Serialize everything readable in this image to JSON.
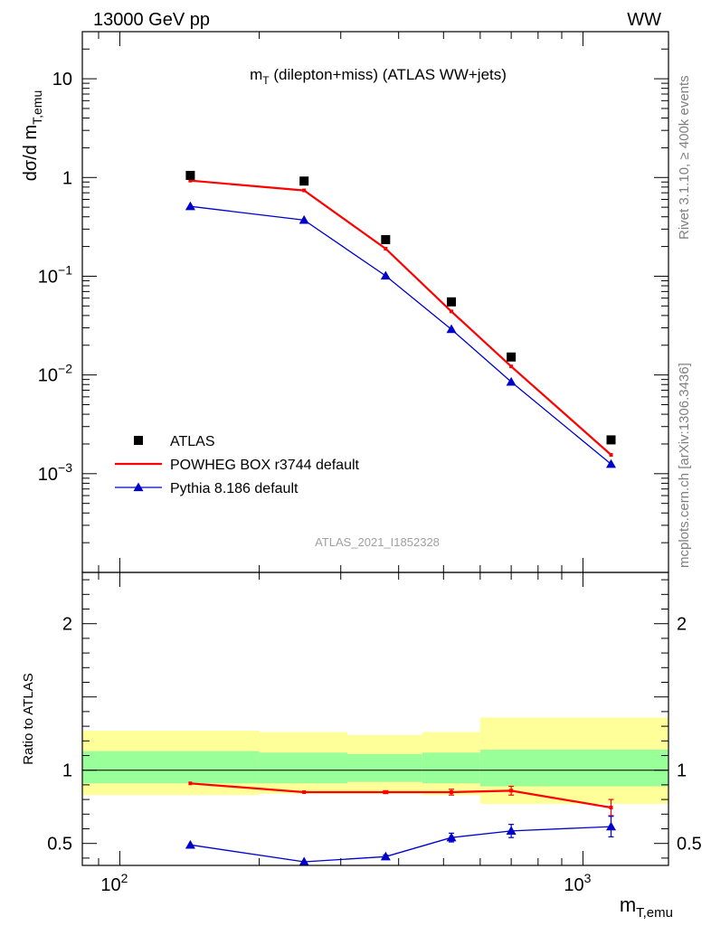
{
  "header": {
    "left": "13000 GeV pp",
    "right": "WW"
  },
  "side": {
    "rivet": "Rivet 3.1.10, ≥ 400k events",
    "mcplots": "mcplots.cern.ch [arXiv:1306.3436]"
  },
  "analysis_id": "ATLAS_2021_I1852328",
  "colors": {
    "data": "#000000",
    "powheg": "#ff0000",
    "pythia": "#0000cc",
    "band_inner": "#99ff99",
    "band_outer": "#ffff99"
  },
  "chart_data": [
    {
      "type": "scatter",
      "panel": "main",
      "title": "m_T (dilepton+miss) (ATLAS WW+jets)",
      "title_parts": {
        "main": "m",
        "sub": "T",
        "rest": " (dilepton+miss) (ATLAS WW+jets)"
      },
      "ylabel": "dσ/d m_T,emu",
      "ylabel_parts": {
        "main": "dσ/d m",
        "sub": "T,emu"
      },
      "yscale": "log",
      "ylim": [
        0.0001,
        30
      ],
      "xscale": "log",
      "xlim": [
        83,
        1530
      ],
      "y_ticks": [
        {
          "value": 10,
          "label": "10"
        },
        {
          "value": 1,
          "label": "1"
        },
        {
          "value": 0.1,
          "base": "10",
          "exp": "−1"
        },
        {
          "value": 0.01,
          "base": "10",
          "exp": "−2"
        },
        {
          "value": 0.001,
          "base": "10",
          "exp": "−3"
        }
      ],
      "x": [
        142,
        250,
        375,
        520,
        700,
        1150
      ],
      "series": [
        {
          "name": "ATLAS",
          "style": "square-markers",
          "values": [
            1.05,
            0.92,
            0.235,
            0.055,
            0.0152,
            0.0022
          ]
        },
        {
          "name": "POWHEG BOX r3744 default",
          "style": "red-line",
          "values": [
            0.93,
            0.74,
            0.19,
            0.044,
            0.0122,
            0.00155
          ]
        },
        {
          "name": "Pythia 8.186 default",
          "style": "blue-line-triangles",
          "values": [
            0.51,
            0.37,
            0.101,
            0.029,
            0.0085,
            0.00125
          ]
        }
      ],
      "legend_position": "bottom-left"
    },
    {
      "type": "line",
      "panel": "ratio",
      "ylabel": "Ratio to ATLAS",
      "xlabel": "m_T,emu",
      "xlabel_parts": {
        "main": "m",
        "sub": "T,emu"
      },
      "xscale": "log",
      "xlim": [
        83,
        1530
      ],
      "ylim": [
        0.35,
        2.35
      ],
      "y_ticks": [
        {
          "value": 2,
          "label": "2"
        },
        {
          "value": 1,
          "label": "1"
        },
        {
          "value": 0.5,
          "label": "0.5"
        }
      ],
      "x_ticks": [
        {
          "value": 100,
          "base": "10",
          "exp": "2"
        },
        {
          "value": 1000,
          "base": "10",
          "exp": "3"
        }
      ],
      "reference_line": 1,
      "bins": [
        {
          "lo": 83,
          "hi": 200,
          "inner": [
            0.91,
            1.13
          ],
          "outer": [
            0.83,
            1.27
          ]
        },
        {
          "lo": 200,
          "hi": 310,
          "inner": [
            0.91,
            1.12
          ],
          "outer": [
            0.84,
            1.26
          ]
        },
        {
          "lo": 310,
          "hi": 450,
          "inner": [
            0.92,
            1.11
          ],
          "outer": [
            0.84,
            1.24
          ]
        },
        {
          "lo": 450,
          "hi": 600,
          "inner": [
            0.91,
            1.12
          ],
          "outer": [
            0.83,
            1.26
          ]
        },
        {
          "lo": 600,
          "hi": 1530,
          "inner": [
            0.89,
            1.14
          ],
          "outer": [
            0.77,
            1.36
          ]
        }
      ],
      "x": [
        142,
        250,
        375,
        520,
        700,
        1150
      ],
      "series": [
        {
          "name": "POWHEG BOX r3744 default",
          "values": [
            0.91,
            0.85,
            0.85,
            0.85,
            0.86,
            0.745
          ],
          "errors": [
            0.005,
            0.005,
            0.01,
            0.02,
            0.03,
            0.055
          ]
        },
        {
          "name": "Pythia 8.186 default",
          "values": [
            0.49,
            0.375,
            0.41,
            0.54,
            0.585,
            0.615
          ],
          "errors": [
            0.005,
            0.005,
            0.01,
            0.03,
            0.045,
            0.07
          ]
        }
      ]
    }
  ]
}
